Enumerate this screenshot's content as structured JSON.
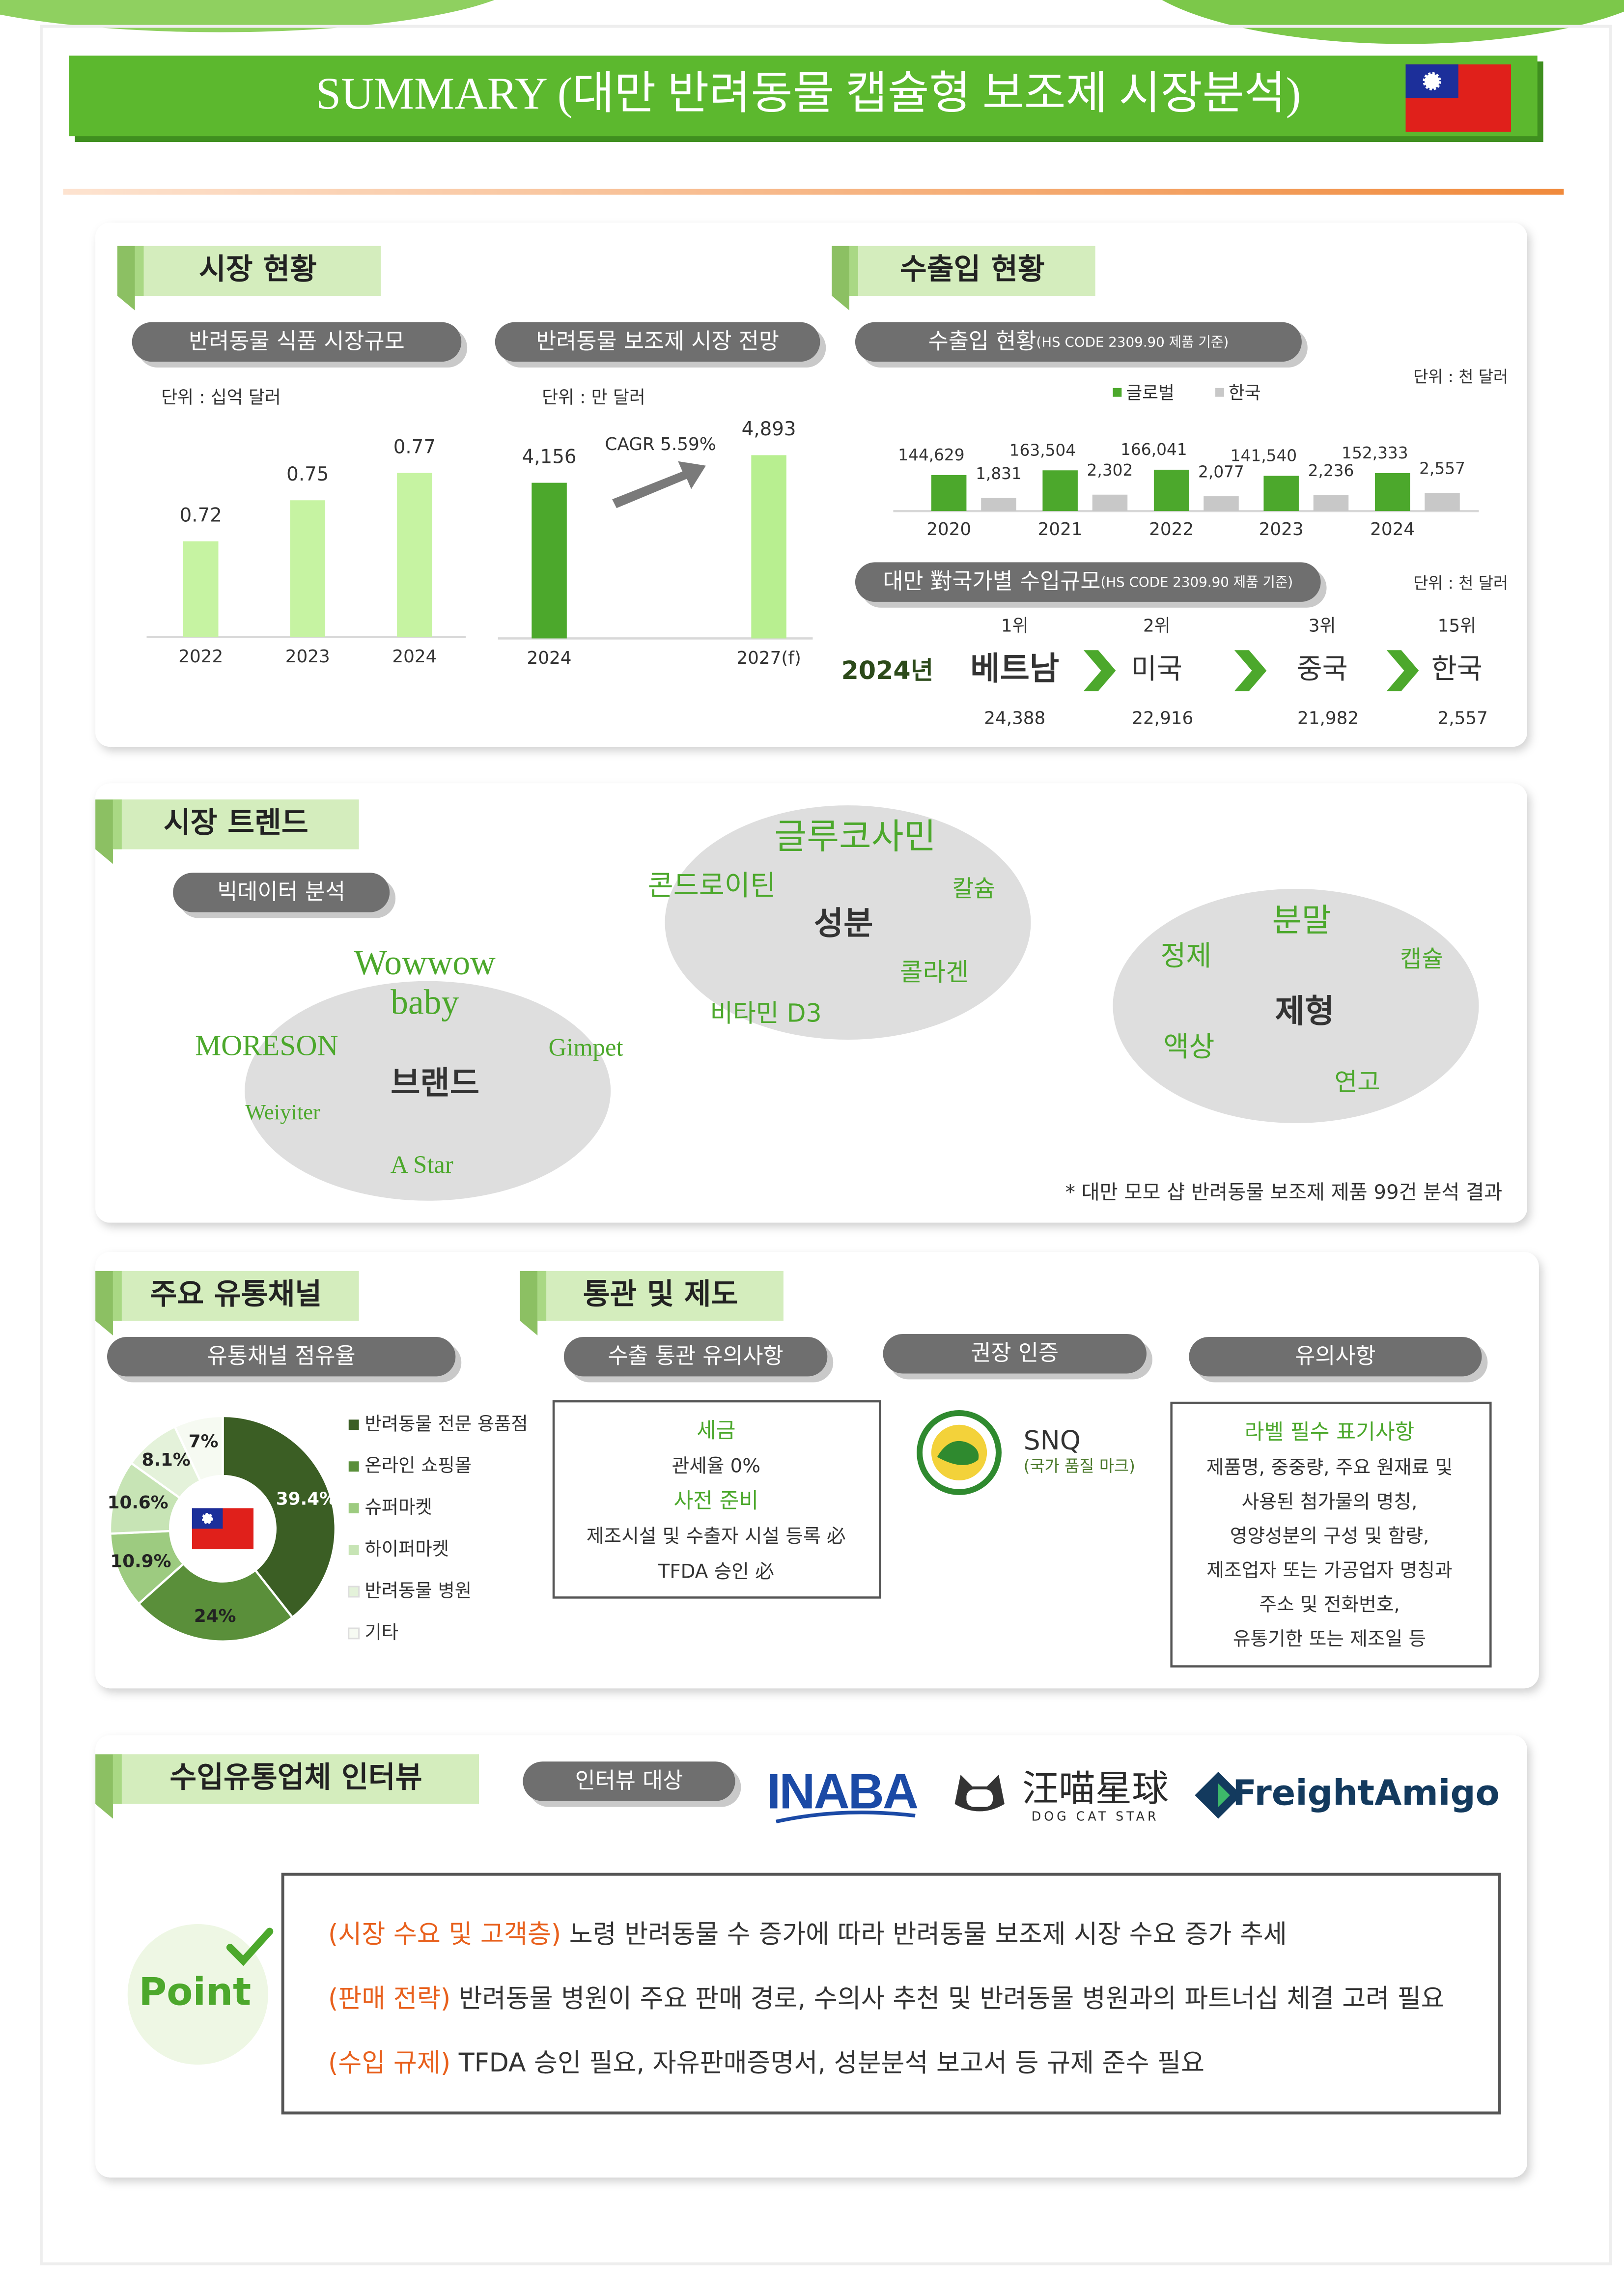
{
  "header": {
    "title": "SUMMARY (대만 반려동물 캡슐형 보조제 시장분석)"
  },
  "market": {
    "heading": "시장 현황",
    "food_tab": "반려동물 식품 시장규모",
    "supplement_tab": "반려동물 보조제 시장 전망"
  },
  "trade": {
    "heading": "수출입 현황",
    "tab": "수출입 현황",
    "tab_note": "(HS CODE 2309.90 제품 기준)"
  },
  "imports": {
    "tab": "대만 對국가별 수입규모",
    "tab_note": "(HS CODE 2309.90 제품 기준)",
    "unit": "단위 : 천 달러",
    "year": "2024년",
    "ranks": [
      {
        "rank": "1위",
        "country": "베트남",
        "value": "24,388"
      },
      {
        "rank": "2위",
        "country": "미국",
        "value": "22,916"
      },
      {
        "rank": "3위",
        "country": "중국",
        "value": "21,982"
      },
      {
        "rank": "15위",
        "country": "한국",
        "value": "2,557"
      }
    ]
  },
  "trends": {
    "heading": "시장 트렌드",
    "tab": "빅데이터 분석",
    "clouds": [
      {
        "center": "브랜드",
        "words": [
          "Wowwow baby",
          "MORESON",
          "Gimpet",
          "Weiyiter",
          "A Star"
        ]
      },
      {
        "center": "성분",
        "words": [
          "글루코사민",
          "콘드로이틴",
          "칼슘",
          "콜라겐",
          "비타민 D3"
        ]
      },
      {
        "center": "제형",
        "words": [
          "분말",
          "정제",
          "캡슐",
          "액상",
          "연고"
        ]
      }
    ],
    "note": "* 대만 모모 샵 반려동물 보조제 제품 99건 분석 결과"
  },
  "channels": {
    "heading": "주요 유통채널",
    "tab": "유통채널 점유율"
  },
  "customs": {
    "heading": "통관 및 제도",
    "export_tab": "수출 통관 유의사항",
    "cert_tab": "권장 인증",
    "caution_tab": "유의사항",
    "export_box": [
      {
        "text": "세금",
        "kind": "title"
      },
      {
        "text": "관세율 0%",
        "kind": "body"
      },
      {
        "text": "사전 준비",
        "kind": "title"
      },
      {
        "text": "제조시설 및 수출자 시설 등록 必",
        "kind": "body"
      },
      {
        "text": "TFDA 승인 必",
        "kind": "body"
      }
    ],
    "cert": {
      "name": "SNQ",
      "desc": "(국가 품질 마크)"
    },
    "label_box": {
      "title": "라벨 필수 표기사항",
      "lines": [
        "제품명, 중중량, 주요 원재료 및",
        "사용된 첨가물의 명칭,",
        "영양성분의 구성 및 함량,",
        "제조업자 또는 가공업자 명칭과",
        "주소 및 전화번호,",
        "유통기한 또는 제조일 등"
      ]
    }
  },
  "interview": {
    "heading": "수입유통업체 인터뷰",
    "tab": "인터뷰 대상",
    "logos": {
      "inaba": "INABA",
      "wangmiao": "汪喵星球",
      "wangmiao_sub": "DOG CAT STAR",
      "freight": "FreightAmigo"
    },
    "point_label": "Point",
    "points": [
      {
        "tag": "(시장 수요 및 고객층)",
        "text": " 노령 반려동물 수 증가에 따라 반려동물 보조제 시장 수요 증가 추세"
      },
      {
        "tag": "(판매 전략)",
        "text": " 반려동물 병원이 주요 판매 경로, 수의사 추천 및 반려동물 병원과의 파트너십 체결 고려 필요"
      },
      {
        "tag": "(수입 규제)",
        "text": " TFDA 승인 필요, 자유판매증명서, 성분분석 보고서 등 규제 준수 필요"
      }
    ]
  },
  "chart_data": [
    {
      "type": "bar",
      "unit": "단위 : 십억 달러",
      "categories": [
        "2022",
        "2023",
        "2024"
      ],
      "values": [
        0.72,
        0.75,
        0.77
      ],
      "color": "#c6f3a2",
      "ylim": [
        0.65,
        0.8
      ]
    },
    {
      "type": "bar",
      "unit": "단위 : 만 달러",
      "categories": [
        "2024",
        "2027(f)"
      ],
      "values": [
        4156,
        4893
      ],
      "value_labels": [
        "4,156",
        "4,893"
      ],
      "colors": [
        "#4ca82c",
        "#b8ef90"
      ],
      "ylim": [
        0,
        5200
      ],
      "annotation": "CAGR 5.59%"
    },
    {
      "type": "grouped-bar",
      "unit": "단위 : 천 달러",
      "categories": [
        "2020",
        "2021",
        "2022",
        "2023",
        "2024"
      ],
      "series": [
        {
          "name": "글로벌",
          "color": "#4ca82c",
          "values": [
            144629,
            163504,
            166041,
            141540,
            152333
          ],
          "value_labels": [
            "144,629",
            "163,504",
            "166,041",
            "141,540",
            "152,333"
          ]
        },
        {
          "name": "한국",
          "color": "#c8c8c8",
          "axis": "y2",
          "values": [
            1831,
            2302,
            2077,
            2236,
            2557
          ],
          "value_labels": [
            "1,831",
            "2,302",
            "2,077",
            "2,236",
            "2,557"
          ]
        }
      ],
      "ylim": [
        0,
        200000
      ],
      "y2lim": [
        0,
        7000
      ]
    },
    {
      "type": "pie",
      "categories": [
        "반려동물 전문 용품점",
        "온라인 쇼핑몰",
        "슈퍼마켓",
        "하이퍼마켓",
        "반려동물 병원",
        "기타"
      ],
      "values": [
        39.4,
        24,
        10.9,
        10.6,
        8.1,
        7
      ],
      "value_labels": [
        "39.4%",
        "24%",
        "10.9%",
        "10.6%",
        "8.1%",
        "7%"
      ],
      "colors": [
        "#3b5e24",
        "#5a8f3a",
        "#9dcb80",
        "#c7e4b5",
        "#e4f2da",
        "#f6faf2"
      ]
    }
  ]
}
